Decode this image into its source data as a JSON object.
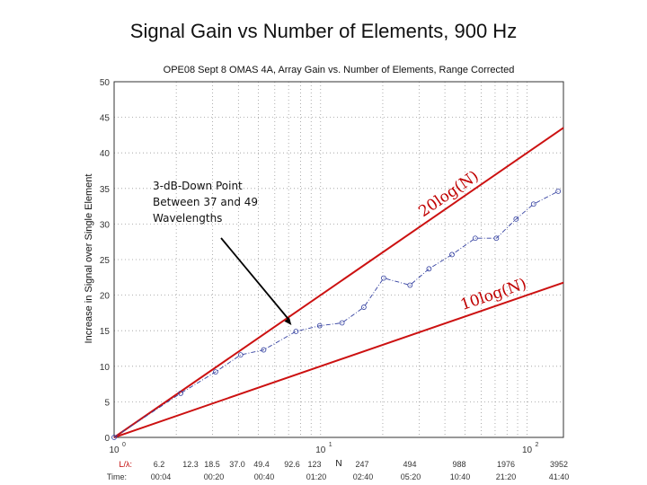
{
  "slide_title": "Signal Gain vs Number of Elements, 900 Hz",
  "chart_data": {
    "type": "line",
    "title": "OPE08 Sept 8 OMAS 4A, Array Gain vs. Number of Elements, Range Corrected",
    "xlabel": "N",
    "ylabel": "Increase in Signal over Single Element",
    "xscale": "log",
    "xlim": [
      1,
      150
    ],
    "ylim": [
      0,
      50
    ],
    "grid": "dotted",
    "y_ticks": [
      "0",
      "5",
      "10",
      "15",
      "20",
      "25",
      "30",
      "35",
      "40",
      "45",
      "50"
    ],
    "x_ticks": [
      {
        "value": 1,
        "base": "10",
        "exp": "0"
      },
      {
        "value": 10,
        "base": "10",
        "exp": "1"
      },
      {
        "value": 100,
        "base": "10",
        "exp": "2"
      }
    ],
    "series": [
      {
        "style": "dash-dot-circle",
        "color": "#3340a0",
        "x": [
          1,
          2.1,
          3.1,
          4.1,
          5.3,
          7.6,
          9.9,
          12.7,
          16.2,
          20.2,
          27.1,
          33.5,
          43.3,
          56.1,
          71.0,
          88.5,
          107.5,
          141.5
        ],
        "y": [
          0,
          6.2,
          9.2,
          11.6,
          12.3,
          14.9,
          15.7,
          16.1,
          18.3,
          22.4,
          21.4,
          23.7,
          25.7,
          28.0,
          28.0,
          30.7,
          32.8,
          34.6
        ]
      }
    ],
    "reference_lines": [
      {
        "label": "20log(N)",
        "slope_db_per_decade": 20,
        "color": "#cc1111"
      },
      {
        "label": "10log(N)",
        "slope_db_per_decade": 10,
        "color": "#cc1111"
      }
    ],
    "annotation": {
      "lines": [
        "3-dB-Down Point",
        "Between 37 and 49",
        "Wavelengths"
      ],
      "arrow_to": {
        "x": 7.6,
        "y": 14.9
      }
    },
    "bottom_axis": {
      "row1_label": "L/λ:",
      "row2_label": "Time:",
      "lambda_values": [
        "6.2",
        "12.3",
        "18.5",
        "37.0",
        "49.4",
        "92.6",
        "123",
        "247",
        "494",
        "988",
        "1976",
        "3952"
      ],
      "time_values": [
        "00:04",
        "00:20",
        "00:40",
        "01:20",
        "02:40",
        "05:20",
        "10:40",
        "21:20",
        "41:40"
      ]
    }
  }
}
